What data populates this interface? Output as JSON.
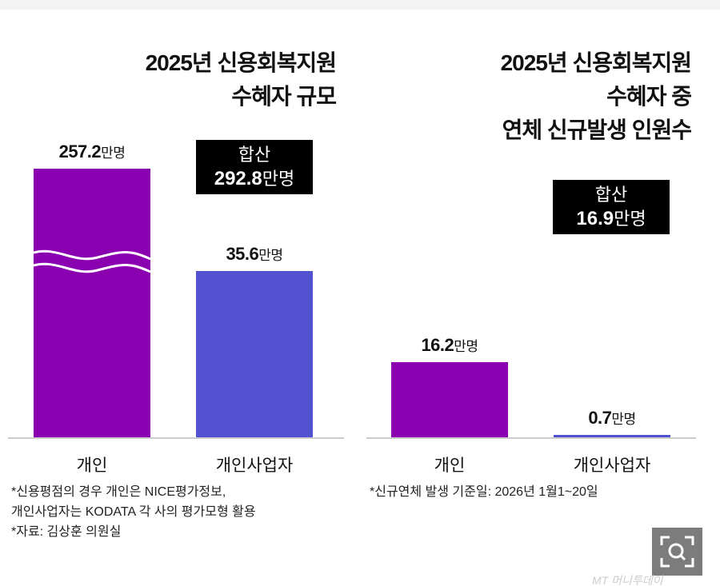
{
  "colors": {
    "individual": "#8a00b0",
    "business": "#5252d0"
  },
  "chart_data": [
    {
      "type": "bar",
      "title": "2025년 신용회복지원\n수혜자 규모",
      "categories": [
        "개인",
        "개인사업자"
      ],
      "values": [
        257.2,
        35.6
      ],
      "unit": "만명",
      "value_labels": [
        "257.2",
        "35.6"
      ],
      "broken_axis_bar": "개인",
      "total_label": "합산",
      "total_value": "292.8",
      "notes": [
        "*신용평점의 경우 개인은 NICE평가정보,",
        "개인사업자는 KODATA 각 사의 평가모형 활용",
        "*자료: 김상훈 의원실"
      ]
    },
    {
      "type": "bar",
      "title": "2025년 신용회복지원\n수혜자 중\n연체 신규발생 인원수",
      "categories": [
        "개인",
        "개인사업자"
      ],
      "values": [
        16.2,
        0.7
      ],
      "unit": "만명",
      "value_labels": [
        "16.2",
        "0.7"
      ],
      "total_label": "합산",
      "total_value": "16.9",
      "notes": [
        "*신규연체 발생 기준일: 2026년 1월1~20일"
      ]
    }
  ],
  "watermark": "MT 머니투데이",
  "icons": {
    "zoom": "zoom-search-icon"
  }
}
